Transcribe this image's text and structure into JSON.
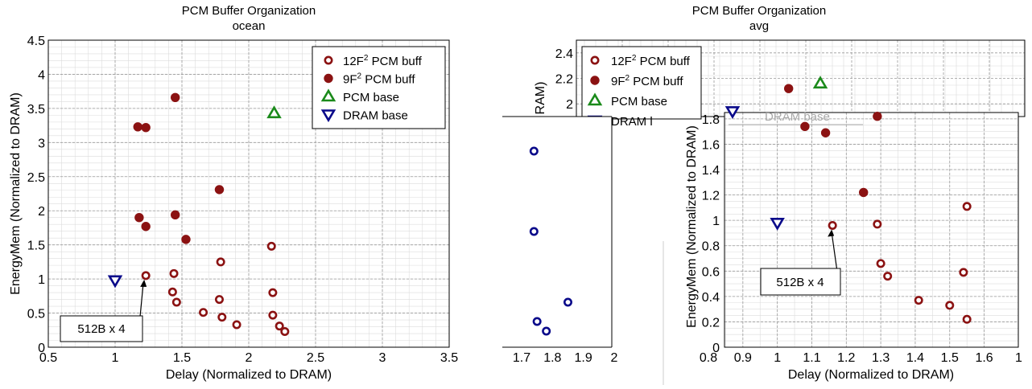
{
  "chart_data": [
    {
      "type": "scatter",
      "title": "PCM Buffer Organization",
      "subtitle": "ocean",
      "xlabel": "Delay (Normalized to DRAM)",
      "ylabel": "EnergyMem (Normalized to DRAM)",
      "xlim": [
        0.5,
        3.5
      ],
      "ylim": [
        0,
        4.5
      ],
      "xticks": [
        "0.5",
        "1",
        "1.5",
        "2",
        "2.5",
        "3",
        "3.5"
      ],
      "yticks": [
        "0",
        "0.5",
        "1",
        "1.5",
        "2",
        "2.5",
        "3",
        "3.5",
        "4",
        "4.5"
      ],
      "grid": true,
      "legend_position": "top-right",
      "series": [
        {
          "name": "12F² PCM buff",
          "marker": "open-circle",
          "color": "#8b1212",
          "points": [
            [
              1.23,
              1.05
            ],
            [
              1.44,
              1.08
            ],
            [
              1.43,
              0.81
            ],
            [
              1.46,
              0.66
            ],
            [
              1.66,
              0.51
            ],
            [
              1.78,
              0.7
            ],
            [
              1.79,
              1.25
            ],
            [
              1.8,
              0.44
            ],
            [
              1.91,
              0.33
            ],
            [
              2.17,
              1.48
            ],
            [
              2.18,
              0.8
            ],
            [
              2.18,
              0.47
            ],
            [
              2.23,
              0.31
            ],
            [
              2.27,
              0.23
            ]
          ]
        },
        {
          "name": "9F² PCM buff",
          "marker": "filled-circle",
          "color": "#8b1212",
          "points": [
            [
              1.17,
              3.23
            ],
            [
              1.23,
              3.22
            ],
            [
              1.45,
              3.66
            ],
            [
              1.18,
              1.9
            ],
            [
              1.23,
              1.77
            ],
            [
              1.45,
              1.94
            ],
            [
              1.53,
              1.58
            ],
            [
              1.78,
              2.31
            ]
          ]
        },
        {
          "name": "PCM base",
          "marker": "triangle-up",
          "color": "#1a8a1a",
          "points": [
            [
              2.19,
              3.43
            ]
          ]
        },
        {
          "name": "DRAM base",
          "marker": "triangle-down",
          "color": "#0a0a8a",
          "points": [
            [
              1.0,
              0.98
            ]
          ]
        }
      ],
      "annotation": {
        "text": "512B x 4",
        "target": [
          1.23,
          1.05
        ]
      }
    },
    {
      "type": "scatter",
      "title": "PCM Buffer Organization",
      "subtitle": "avg",
      "ylabel_partial": "RAM)",
      "yticks": [
        "2",
        "2.2",
        "2.4"
      ],
      "ylim": [
        1.9,
        2.5
      ],
      "legend_position": "top-left",
      "series": [
        {
          "name": "12F² PCM buff",
          "marker": "open-circle",
          "color": "#8b1212"
        },
        {
          "name": "9F² PCM buff",
          "marker": "filled-circle",
          "color": "#8b1212",
          "points": [
            [
              1.08,
              2.12
            ]
          ]
        },
        {
          "name": "PCM base",
          "marker": "triangle-up",
          "color": "#1a8a1a",
          "points": [
            [
              1.16,
              2.16
            ]
          ]
        },
        {
          "name": "DRAM base",
          "marker": "triangle-down",
          "color": "#0a0a8a"
        }
      ],
      "partial_legend_label": "DRAM l"
    },
    {
      "type": "scatter",
      "xlim": [
        1.7,
        2.0
      ],
      "xticks": [
        "1.7",
        "1.8",
        "1.9",
        "2"
      ],
      "series": [
        {
          "name": "",
          "marker": "open-circle",
          "color": "#0a0a8a",
          "points": [
            [
              1.74,
              0.61
            ],
            [
              1.74,
              0.36
            ],
            [
              1.75,
              0.08
            ],
            [
              1.78,
              0.05
            ],
            [
              1.85,
              0.14
            ]
          ]
        }
      ]
    },
    {
      "type": "scatter",
      "xlabel": "Delay (Normalized to DRAM)",
      "ylabel": "EnergyMem (Normalized to DRAM)",
      "ylabel_partial_top": "EnergyMem (Normalized to D",
      "xlim": [
        0.8,
        1.65
      ],
      "ylim": [
        0,
        1.85
      ],
      "xticks": [
        "0.8",
        "0.9",
        "1",
        "1.1",
        "1.2",
        "1.3",
        "1.4",
        "1.5",
        "1.6",
        "1"
      ],
      "yticks": [
        "0",
        "0.2",
        "0.4",
        "0.6",
        "0.8",
        "1",
        "1.2",
        "1.4",
        "1.6",
        "1.8"
      ],
      "grid": true,
      "partial_legend_label": "DRAM base",
      "series": [
        {
          "name": "12F² PCM buff",
          "marker": "open-circle",
          "color": "#8b1212",
          "points": [
            [
              1.16,
              0.96
            ],
            [
              1.29,
              0.97
            ],
            [
              1.3,
              0.66
            ],
            [
              1.32,
              0.56
            ],
            [
              1.41,
              0.37
            ],
            [
              1.5,
              0.33
            ],
            [
              1.54,
              0.59
            ],
            [
              1.55,
              1.11
            ],
            [
              1.55,
              0.22
            ]
          ]
        },
        {
          "name": "9F² PCM buff",
          "marker": "filled-circle",
          "color": "#8b1212",
          "points": [
            [
              1.08,
              1.74
            ],
            [
              1.14,
              1.69
            ],
            [
              1.29,
              1.82
            ],
            [
              1.25,
              1.22
            ]
          ]
        },
        {
          "name": "DRAM base",
          "marker": "triangle-down",
          "color": "#0a0a8a",
          "points": [
            [
              1.0,
              0.98
            ],
            [
              0.87,
              1.86
            ]
          ]
        }
      ],
      "annotation": {
        "text": "512B x 4",
        "target": [
          1.16,
          0.96
        ]
      }
    }
  ]
}
